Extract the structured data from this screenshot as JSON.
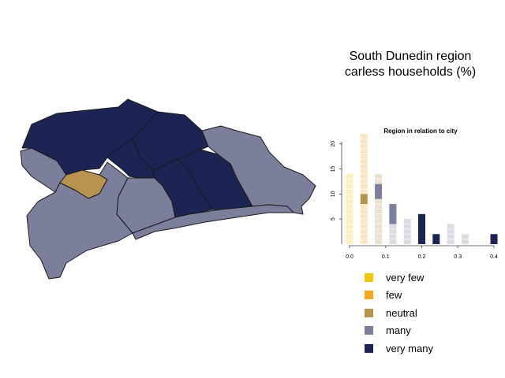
{
  "title_line1": "South Dunedin region",
  "title_line2": "carless households (%)",
  "colors": {
    "very_few": "#f2c80f",
    "few": "#f5a623",
    "neutral": "#b8934f",
    "many": "#7b7f9c",
    "very_many": "#1c2454"
  },
  "legend": [
    {
      "label": "very few",
      "color": "#f2c80f"
    },
    {
      "label": "few",
      "color": "#f5a623"
    },
    {
      "label": "neutral",
      "color": "#b8934f"
    },
    {
      "label": "many",
      "color": "#7b7f9c"
    },
    {
      "label": "very many",
      "color": "#1c2454"
    }
  ],
  "map_regions": [
    {
      "name": "north-west",
      "category": "very_many"
    },
    {
      "name": "north-east",
      "category": "very_many"
    },
    {
      "name": "west-arm",
      "category": "many"
    },
    {
      "name": "central",
      "category": "neutral"
    },
    {
      "name": "south-west",
      "category": "many"
    },
    {
      "name": "middle-small",
      "category": "very_many"
    },
    {
      "name": "mid-south",
      "category": "many"
    },
    {
      "name": "mid-south-2",
      "category": "very_many"
    },
    {
      "name": "mid-east",
      "category": "very_many"
    },
    {
      "name": "east",
      "category": "many"
    },
    {
      "name": "coastal-strip",
      "category": "many"
    }
  ],
  "chart_data": {
    "type": "bar",
    "title": "Region in relation to city",
    "xlabel": "",
    "ylabel": "",
    "xlim": [
      0,
      0.4
    ],
    "ylim": [
      0,
      22
    ],
    "xticks": [
      "0.0",
      "0.1",
      "0.2",
      "0.3",
      "0.4"
    ],
    "yticks": [
      "5",
      "10",
      "15",
      "20"
    ],
    "bin_width": 0.04,
    "city_bars": [
      {
        "x": 0.0,
        "count": 14,
        "category": "very_few"
      },
      {
        "x": 0.04,
        "count": 22,
        "category": "few"
      },
      {
        "x": 0.08,
        "count": 14,
        "category": "neutral"
      },
      {
        "x": 0.12,
        "count": 8,
        "category": "many"
      },
      {
        "x": 0.16,
        "count": 5,
        "category": "many"
      },
      {
        "x": 0.2,
        "count": 6,
        "category": "many"
      },
      {
        "x": 0.28,
        "count": 4,
        "category": "many"
      },
      {
        "x": 0.32,
        "count": 2,
        "category": "many"
      }
    ],
    "region_bars": [
      {
        "x": 0.04,
        "from": 8,
        "to": 10,
        "category": "neutral"
      },
      {
        "x": 0.08,
        "from": 9,
        "to": 12,
        "category": "many"
      },
      {
        "x": 0.12,
        "from": 4,
        "to": 8,
        "category": "many"
      },
      {
        "x": 0.2,
        "from": 0,
        "to": 6,
        "category": "very_many"
      },
      {
        "x": 0.24,
        "from": 0,
        "to": 2,
        "category": "very_many"
      },
      {
        "x": 0.4,
        "from": 0,
        "to": 2,
        "category": "very_many"
      }
    ]
  }
}
